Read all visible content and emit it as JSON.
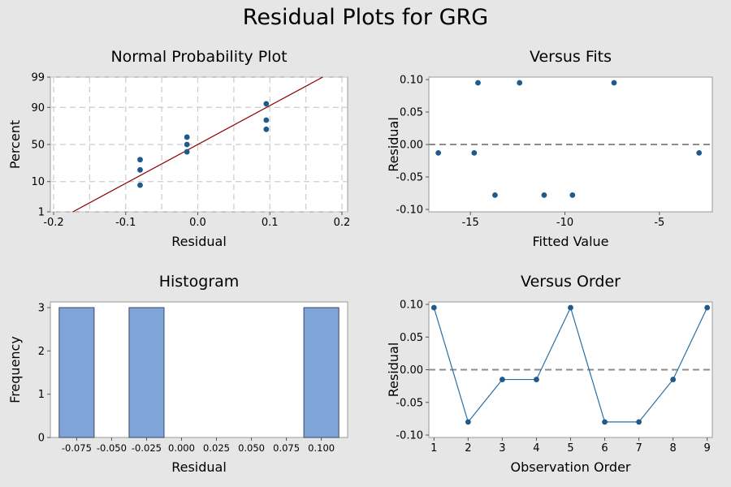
{
  "title": "Residual Plots for GRG",
  "colors": {
    "panel_bg": "#e6e6e6",
    "plot_bg": "#ffffff",
    "point": "#1f5a8a",
    "fit_line": "#8b0000",
    "bar_fill": "#7ea4d8",
    "bar_stroke": "#3a4a66",
    "grid": "#cccccc",
    "ref_line": "#8c8c8c",
    "order_line": "#2a6fa0"
  },
  "chart_data": [
    {
      "id": "normal-probability",
      "type": "scatter",
      "title": "Normal Probability Plot",
      "xlabel": "Residual",
      "ylabel": "Percent",
      "xlim": [
        -0.2,
        0.2
      ],
      "xticks": [
        -0.2,
        -0.1,
        0.0,
        0.1,
        0.2
      ],
      "xtick_labels": [
        "-0.2",
        "-0.1",
        "0.0",
        "0.1",
        "0.2"
      ],
      "yticks": [
        1,
        10,
        50,
        90,
        99
      ],
      "ytick_labels": [
        "1",
        "10",
        "50",
        "90",
        "99"
      ],
      "grid": true,
      "fit_line": {
        "mean": 0.0,
        "sd": 0.0745
      },
      "points": [
        {
          "x": -0.08,
          "y": 8
        },
        {
          "x": -0.08,
          "y": 19
        },
        {
          "x": -0.08,
          "y": 30
        },
        {
          "x": -0.015,
          "y": 40
        },
        {
          "x": -0.015,
          "y": 50
        },
        {
          "x": -0.015,
          "y": 60
        },
        {
          "x": 0.095,
          "y": 70
        },
        {
          "x": 0.095,
          "y": 80
        },
        {
          "x": 0.095,
          "y": 92
        }
      ]
    },
    {
      "id": "versus-fits",
      "type": "scatter",
      "title": "Versus Fits",
      "xlabel": "Fitted Value",
      "ylabel": "Residual",
      "xlim": [
        -17.2,
        -2.2
      ],
      "ylim": [
        -0.1,
        0.1
      ],
      "xticks": [
        -15,
        -10,
        -5
      ],
      "xtick_labels": [
        "-15",
        "-10",
        "-5"
      ],
      "yticks": [
        -0.1,
        -0.05,
        0.0,
        0.05,
        0.1
      ],
      "ytick_labels": [
        "-0.10",
        "-0.05",
        "0.00",
        "0.05",
        "0.10"
      ],
      "reference_line": 0.0,
      "points": [
        {
          "x": -16.7,
          "y": -0.013
        },
        {
          "x": -14.8,
          "y": -0.013
        },
        {
          "x": -14.6,
          "y": 0.095
        },
        {
          "x": -13.7,
          "y": -0.078
        },
        {
          "x": -12.4,
          "y": 0.095
        },
        {
          "x": -11.1,
          "y": -0.078
        },
        {
          "x": -9.6,
          "y": -0.078
        },
        {
          "x": -7.4,
          "y": 0.095
        },
        {
          "x": -2.9,
          "y": -0.013
        }
      ]
    },
    {
      "id": "histogram",
      "type": "bar",
      "title": "Histogram",
      "xlabel": "Residual",
      "ylabel": "Frequency",
      "xlim": [
        -0.0938,
        0.1188
      ],
      "ylim": [
        0,
        3
      ],
      "xticks": [
        -0.075,
        -0.05,
        -0.025,
        0.0,
        0.025,
        0.05,
        0.075,
        0.1
      ],
      "xtick_labels": [
        "-0.075",
        "-0.050",
        "-0.025",
        "0.000",
        "0.025",
        "0.050",
        "0.075",
        "0.100"
      ],
      "yticks": [
        0,
        1,
        2,
        3
      ],
      "ytick_labels": [
        "0",
        "1",
        "2",
        "3"
      ],
      "bin_width": 0.025,
      "bins": [
        {
          "center": -0.075,
          "count": 3
        },
        {
          "center": -0.025,
          "count": 3
        },
        {
          "center": 0.1,
          "count": 3
        }
      ]
    },
    {
      "id": "versus-order",
      "type": "line",
      "title": "Versus Order",
      "xlabel": "Observation Order",
      "ylabel": "Residual",
      "xlim": [
        0.85,
        9.15
      ],
      "ylim": [
        -0.1,
        0.1
      ],
      "xticks": [
        1,
        2,
        3,
        4,
        5,
        6,
        7,
        8,
        9
      ],
      "xtick_labels": [
        "1",
        "2",
        "3",
        "4",
        "5",
        "6",
        "7",
        "8",
        "9"
      ],
      "yticks": [
        -0.1,
        -0.05,
        0.0,
        0.05,
        0.1
      ],
      "ytick_labels": [
        "-0.10",
        "-0.05",
        "0.00",
        "0.05",
        "0.10"
      ],
      "reference_line": 0.0,
      "x": [
        1,
        2,
        3,
        4,
        5,
        6,
        7,
        8,
        9
      ],
      "values": [
        0.095,
        -0.08,
        -0.015,
        -0.015,
        0.095,
        -0.08,
        -0.08,
        -0.015,
        0.095
      ]
    }
  ]
}
